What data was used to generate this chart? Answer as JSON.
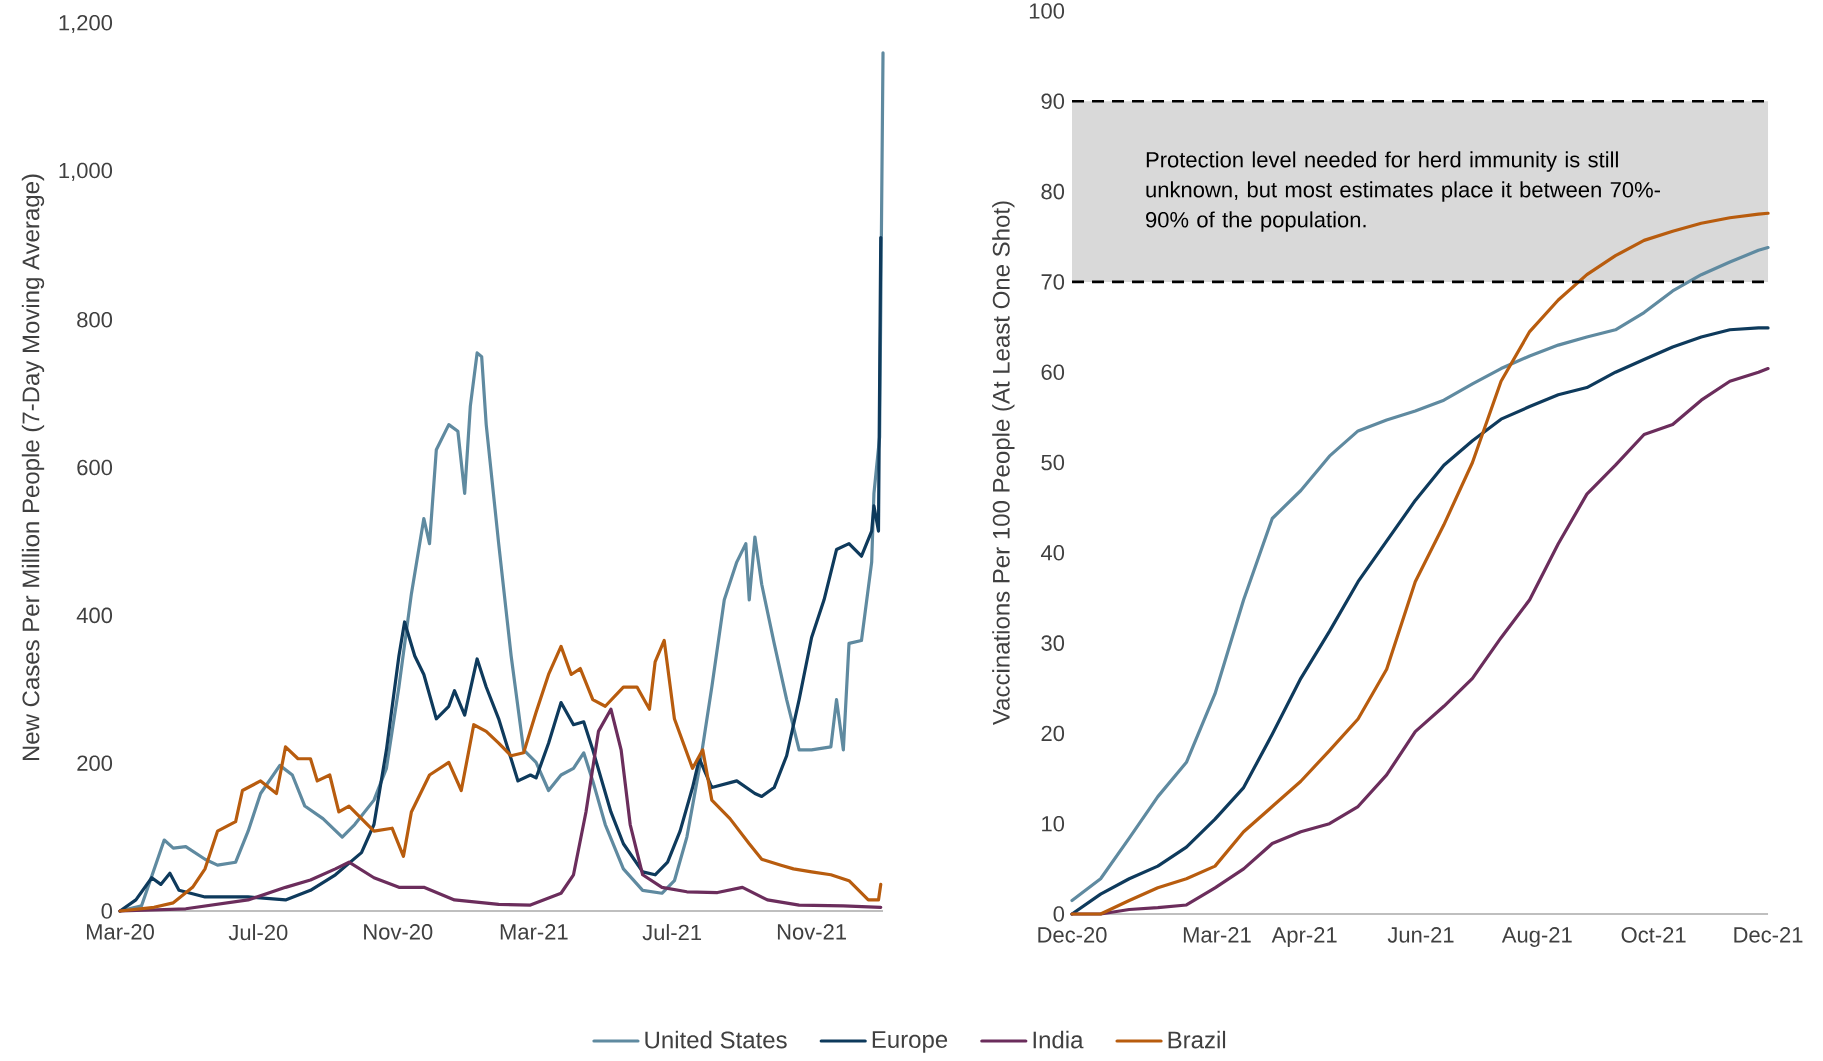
{
  "chart_data": [
    {
      "type": "line",
      "ylabel": "New Cases Per Million People  (7-Day Moving Average)",
      "xlim": [
        "2020-03-01",
        "2022-01-03"
      ],
      "ylim": [
        0,
        1200
      ],
      "xticks": [
        {
          "value": "2020-03-01",
          "label": "Mar-20"
        },
        {
          "value": "2020-07-01",
          "label": "Jul-20"
        },
        {
          "value": "2020-11-01",
          "label": "Nov-20"
        },
        {
          "value": "2021-03-01",
          "label": "Mar-21"
        },
        {
          "value": "2021-07-01",
          "label": "Jul-21"
        },
        {
          "value": "2021-11-01",
          "label": "Nov-21"
        }
      ],
      "yticks": [
        0,
        200,
        400,
        600,
        800,
        {
          "value": 1000,
          "label": "1,000"
        },
        {
          "value": 1200,
          "label": "1,200"
        }
      ],
      "legend": "bottom",
      "series": [
        {
          "name": "United States",
          "color": "#5f8aa0",
          "x": [
            "2020-03-01",
            "2020-03-20",
            "2020-04-09",
            "2020-04-17",
            "2020-04-28",
            "2020-05-15",
            "2020-05-26",
            "2020-06-11",
            "2020-06-22",
            "2020-07-03",
            "2020-07-20",
            "2020-07-31",
            "2020-08-11",
            "2020-08-27",
            "2020-09-13",
            "2020-09-24",
            "2020-10-11",
            "2020-10-22",
            "2020-11-02",
            "2020-11-13",
            "2020-11-24",
            "2020-11-29",
            "2020-12-05",
            "2020-12-16",
            "2020-12-24",
            "2020-12-30",
            "2021-01-04",
            "2021-01-10",
            "2021-01-14",
            "2021-01-18",
            "2021-01-29",
            "2021-02-09",
            "2021-02-20",
            "2021-03-03",
            "2021-03-14",
            "2021-03-25",
            "2021-04-05",
            "2021-04-14",
            "2021-04-22",
            "2021-05-03",
            "2021-05-19",
            "2021-06-05",
            "2021-06-22",
            "2021-07-03",
            "2021-07-14",
            "2021-07-25",
            "2021-08-05",
            "2021-08-16",
            "2021-08-27",
            "2021-09-04",
            "2021-09-07",
            "2021-09-12",
            "2021-09-18",
            "2021-09-29",
            "2021-10-10",
            "2021-10-21",
            "2021-11-01",
            "2021-11-18",
            "2021-11-23",
            "2021-11-29",
            "2021-12-04",
            "2021-12-15",
            "2021-12-24",
            "2021-12-26",
            "2021-12-31",
            "2022-01-03"
          ],
          "values": [
            0,
            7,
            96,
            85,
            87,
            70,
            62,
            66,
            108,
            159,
            197,
            184,
            142,
            125,
            100,
            117,
            150,
            193,
            303,
            429,
            531,
            497,
            624,
            658,
            649,
            565,
            683,
            755,
            750,
            658,
            497,
            345,
            218,
            201,
            163,
            184,
            193,
            214,
            176,
            117,
            57,
            28,
            24,
            41,
            100,
            193,
            303,
            421,
            472,
            497,
            421,
            506,
            442,
            362,
            286,
            218,
            218,
            222,
            286,
            218,
            362,
            366,
            472,
            565,
            641,
            1161
          ]
        },
        {
          "name": "Europe",
          "color": "#0e3a5c",
          "x": [
            "2020-03-01",
            "2020-03-15",
            "2020-03-29",
            "2020-04-06",
            "2020-04-14",
            "2020-04-22",
            "2020-05-15",
            "2020-06-22",
            "2020-07-25",
            "2020-08-16",
            "2020-09-07",
            "2020-09-30",
            "2020-10-11",
            "2020-10-22",
            "2020-11-02",
            "2020-11-07",
            "2020-11-16",
            "2020-11-24",
            "2020-12-05",
            "2020-12-16",
            "2020-12-21",
            "2020-12-30",
            "2021-01-10",
            "2021-01-18",
            "2021-01-29",
            "2021-02-15",
            "2021-02-26",
            "2021-03-03",
            "2021-03-14",
            "2021-03-25",
            "2021-04-05",
            "2021-04-14",
            "2021-04-22",
            "2021-05-08",
            "2021-05-19",
            "2021-06-05",
            "2021-06-16",
            "2021-06-27",
            "2021-07-08",
            "2021-07-19",
            "2021-07-25",
            "2021-08-05",
            "2021-08-27",
            "2021-09-12",
            "2021-09-18",
            "2021-09-29",
            "2021-10-10",
            "2021-10-21",
            "2021-11-01",
            "2021-11-12",
            "2021-11-23",
            "2021-12-04",
            "2021-12-15",
            "2021-12-24",
            "2021-12-26",
            "2021-12-30",
            "2022-01-01"
          ],
          "values": [
            0,
            15,
            45,
            36,
            51,
            28,
            19,
            19,
            15,
            28,
            49,
            79,
            117,
            218,
            345,
            391,
            345,
            320,
            260,
            277,
            298,
            265,
            341,
            303,
            260,
            176,
            184,
            180,
            227,
            282,
            252,
            256,
            218,
            134,
            91,
            53,
            49,
            66,
            108,
            167,
            206,
            167,
            176,
            159,
            155,
            167,
            210,
            286,
            370,
            421,
            489,
            497,
            480,
            514,
            548,
            514,
            911
          ]
        },
        {
          "name": "India",
          "color": "#6b2d5c",
          "x": [
            "2020-03-01",
            "2020-04-28",
            "2020-06-22",
            "2020-07-25",
            "2020-08-16",
            "2020-09-07",
            "2020-09-19",
            "2020-10-11",
            "2020-11-02",
            "2020-11-24",
            "2020-12-21",
            "2021-01-29",
            "2021-02-26",
            "2021-03-25",
            "2021-04-05",
            "2021-04-16",
            "2021-04-27",
            "2021-05-08",
            "2021-05-17",
            "2021-05-25",
            "2021-06-05",
            "2021-06-22",
            "2021-07-14",
            "2021-08-10",
            "2021-09-01",
            "2021-09-23",
            "2021-10-21",
            "2021-11-29",
            "2022-01-01"
          ],
          "values": [
            0,
            3,
            15,
            32,
            42,
            57,
            66,
            45,
            32,
            32,
            15,
            9,
            8,
            24,
            49,
            134,
            243,
            273,
            218,
            117,
            49,
            32,
            26,
            25,
            32,
            15,
            8,
            7,
            5
          ]
        },
        {
          "name": "Brazil",
          "color": "#b85c0e",
          "x": [
            "2020-03-01",
            "2020-03-31",
            "2020-04-17",
            "2020-05-04",
            "2020-05-15",
            "2020-05-26",
            "2020-06-11",
            "2020-06-17",
            "2020-07-03",
            "2020-07-17",
            "2020-07-25",
            "2020-08-05",
            "2020-08-16",
            "2020-08-22",
            "2020-09-02",
            "2020-09-10",
            "2020-09-19",
            "2020-10-11",
            "2020-10-27",
            "2020-11-06",
            "2020-11-13",
            "2020-11-29",
            "2020-12-16",
            "2020-12-27",
            "2021-01-07",
            "2021-01-18",
            "2021-01-29",
            "2021-02-09",
            "2021-02-20",
            "2021-03-03",
            "2021-03-14",
            "2021-03-25",
            "2021-04-03",
            "2021-04-11",
            "2021-04-22",
            "2021-05-03",
            "2021-05-19",
            "2021-05-31",
            "2021-06-11",
            "2021-06-16",
            "2021-06-24",
            "2021-07-03",
            "2021-07-19",
            "2021-07-28",
            "2021-08-05",
            "2021-08-21",
            "2021-09-07",
            "2021-09-18",
            "2021-10-05",
            "2021-10-16",
            "2021-11-01",
            "2021-11-18",
            "2021-12-04",
            "2021-12-21",
            "2021-12-30",
            "2022-01-01"
          ],
          "values": [
            0,
            5,
            11,
            32,
            57,
            108,
            121,
            163,
            176,
            159,
            222,
            206,
            206,
            176,
            184,
            134,
            142,
            108,
            112,
            74,
            134,
            184,
            201,
            163,
            252,
            243,
            227,
            210,
            214,
            269,
            320,
            358,
            320,
            328,
            286,
            277,
            303,
            303,
            273,
            337,
            366,
            260,
            193,
            218,
            150,
            125,
            91,
            70,
            62,
            57,
            53,
            49,
            41,
            15,
            15,
            36
          ]
        }
      ]
    },
    {
      "type": "line",
      "ylabel": "Vaccinations Per 100 People (At Least One Shot)",
      "xlim": [
        "2020-12-15",
        "2021-12-15"
      ],
      "ylim": [
        0,
        100
      ],
      "xticks": [
        {
          "value": "2020-12-15",
          "label": "Dec-20"
        },
        {
          "value": "2021-03-01",
          "label": "Mar-21"
        },
        {
          "value": "2021-04-16",
          "label": "Apr-21"
        },
        {
          "value": "2021-06-16",
          "label": "Jun-21"
        },
        {
          "value": "2021-08-16",
          "label": "Aug-21"
        },
        {
          "value": "2021-10-16",
          "label": "Oct-21"
        },
        {
          "value": "2021-12-15",
          "label": "Dec-21"
        }
      ],
      "yticks": [
        0,
        10,
        20,
        30,
        40,
        50,
        60,
        70,
        80,
        90,
        100
      ],
      "bands": [
        {
          "axis": "y",
          "from": 70,
          "to": 90,
          "color": "#d9d9d9",
          "label": "Protection level needed for herd immunity is still unknown, but most estimates place it between 70%-90% of the population."
        }
      ],
      "ref_lines": [
        {
          "axis": "y",
          "value": 70,
          "color": "#000000",
          "line_style": "dashed"
        },
        {
          "axis": "y",
          "value": 90,
          "color": "#000000",
          "line_style": "dashed"
        }
      ],
      "x": [
        "2020-12-15",
        "2020-12-30",
        "2021-01-14",
        "2021-01-29",
        "2021-02-13",
        "2021-02-28",
        "2021-03-15",
        "2021-03-30",
        "2021-04-14",
        "2021-04-29",
        "2021-05-14",
        "2021-05-29",
        "2021-06-13",
        "2021-06-28",
        "2021-07-13",
        "2021-07-28",
        "2021-08-12",
        "2021-08-27",
        "2021-09-11",
        "2021-09-26",
        "2021-10-11",
        "2021-10-26",
        "2021-11-10",
        "2021-11-25",
        "2021-12-10",
        "2021-12-15"
      ],
      "series": [
        {
          "color": "#5f8aa0",
          "values": [
            1.5,
            3.9,
            8.4,
            13,
            16.8,
            24.4,
            34.8,
            43.8,
            46.9,
            50.7,
            53.5,
            54.7,
            55.7,
            56.9,
            58.7,
            60.4,
            61.8,
            63,
            63.9,
            64.7,
            66.6,
            69,
            70.8,
            72.2,
            73.5,
            73.8
          ]
        },
        {
          "color": "#0e3a5c",
          "values": [
            0,
            2.2,
            3.9,
            5.3,
            7.4,
            10.5,
            14,
            19.9,
            26.1,
            31.3,
            36.8,
            41.3,
            45.8,
            49.7,
            52.4,
            54.8,
            56.2,
            57.5,
            58.3,
            60,
            61.4,
            62.8,
            63.9,
            64.7,
            64.9,
            64.9
          ]
        },
        {
          "color": "#6b2d5c",
          "values": [
            0,
            0,
            0.5,
            0.7,
            1,
            2.9,
            5,
            7.8,
            9.1,
            10,
            11.9,
            15.4,
            20.2,
            23,
            26.1,
            30.6,
            34.8,
            41,
            46.5,
            49.7,
            53.1,
            54.2,
            56.9,
            59,
            60,
            60.4
          ]
        },
        {
          "color": "#b85c0e",
          "values": [
            0,
            0,
            1.5,
            2.9,
            3.9,
            5.3,
            9.1,
            11.9,
            14.7,
            18.1,
            21.6,
            27.1,
            36.8,
            43.1,
            50,
            59,
            64.5,
            68,
            70.8,
            72.9,
            74.6,
            75.6,
            76.5,
            77.1,
            77.5,
            77.6
          ]
        }
      ]
    }
  ]
}
